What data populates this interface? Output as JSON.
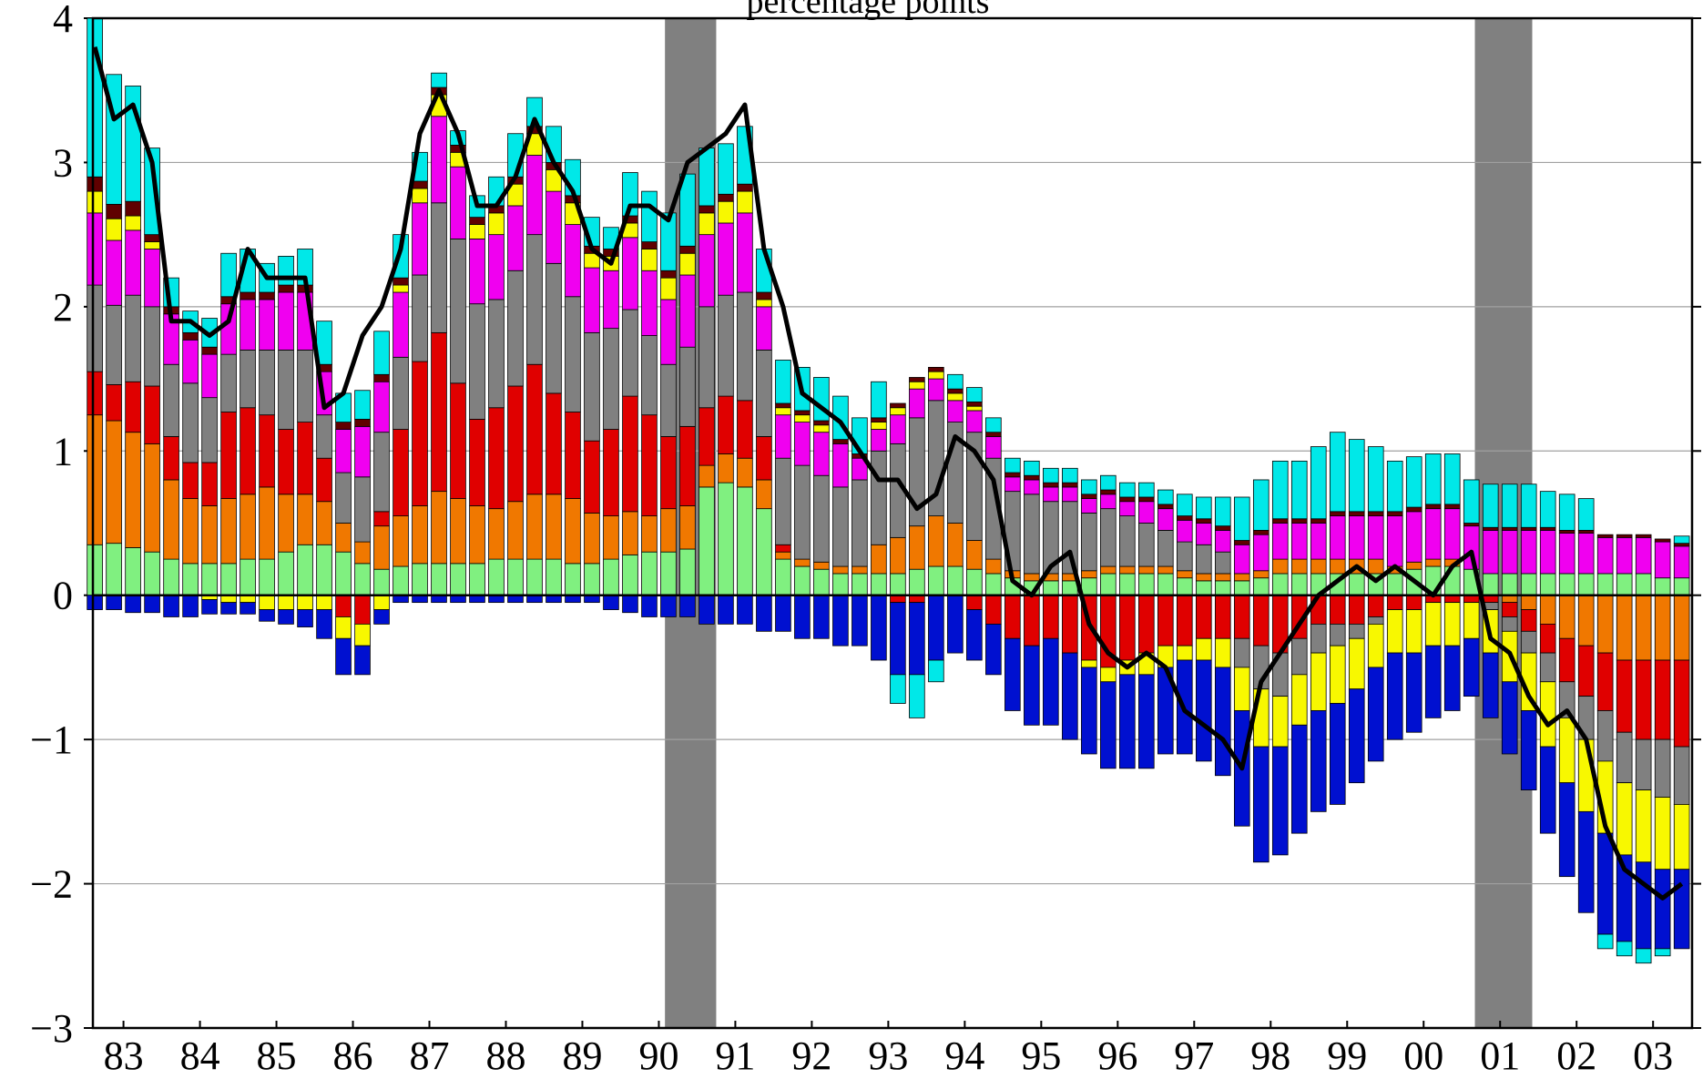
{
  "chart_data": {
    "type": "stacked_bar_line",
    "title": "percentage points",
    "xlim": [
      1983.1,
      2004.01
    ],
    "xticks": [
      {
        "value": 1983.5,
        "label": "83"
      },
      {
        "value": 1984.5,
        "label": "84"
      },
      {
        "value": 1985.5,
        "label": "85"
      },
      {
        "value": 1986.5,
        "label": "86"
      },
      {
        "value": 1987.5,
        "label": "87"
      },
      {
        "value": 1988.5,
        "label": "88"
      },
      {
        "value": 1989.5,
        "label": "89"
      },
      {
        "value": 1990.5,
        "label": "90"
      },
      {
        "value": 1991.5,
        "label": "91"
      },
      {
        "value": 1992.5,
        "label": "92"
      },
      {
        "value": 1993.5,
        "label": "93"
      },
      {
        "value": 1994.5,
        "label": "94"
      },
      {
        "value": 1995.5,
        "label": "95"
      },
      {
        "value": 1996.5,
        "label": "96"
      },
      {
        "value": 1997.5,
        "label": "97"
      },
      {
        "value": 1998.5,
        "label": "98"
      },
      {
        "value": 1999.5,
        "label": "99"
      },
      {
        "value": 2000.5,
        "label": "00"
      },
      {
        "value": 2001.5,
        "label": "01"
      },
      {
        "value": 2002.5,
        "label": "02"
      },
      {
        "value": 2003.5,
        "label": "03"
      }
    ],
    "ylim": [
      -3,
      4
    ],
    "yticks": [
      {
        "value": -3,
        "label": "−3"
      },
      {
        "value": -2,
        "label": "−2"
      },
      {
        "value": -1,
        "label": "−1"
      },
      0,
      1,
      2,
      3,
      4
    ],
    "grid": true,
    "shading": [
      [
        1990.58,
        1991.25
      ],
      [
        2001.17,
        2001.92
      ]
    ],
    "shading_color": "#808080",
    "x": [
      1983.125,
      1983.375,
      1983.625,
      1983.875,
      1984.125,
      1984.375,
      1984.625,
      1984.875,
      1985.125,
      1985.375,
      1985.625,
      1985.875,
      1986.125,
      1986.375,
      1986.625,
      1986.875,
      1987.125,
      1987.375,
      1987.625,
      1987.875,
      1988.125,
      1988.375,
      1988.625,
      1988.875,
      1989.125,
      1989.375,
      1989.625,
      1989.875,
      1990.125,
      1990.375,
      1990.625,
      1990.875,
      1991.125,
      1991.375,
      1991.625,
      1991.875,
      1992.125,
      1992.375,
      1992.625,
      1992.875,
      1993.125,
      1993.375,
      1993.625,
      1993.875,
      1994.125,
      1994.375,
      1994.625,
      1994.875,
      1995.125,
      1995.375,
      1995.625,
      1995.875,
      1996.125,
      1996.375,
      1996.625,
      1996.875,
      1997.125,
      1997.375,
      1997.625,
      1997.875,
      1998.125,
      1998.375,
      1998.625,
      1998.875,
      1999.125,
      1999.375,
      1999.625,
      1999.875,
      2000.125,
      2000.375,
      2000.625,
      2000.875,
      2001.125,
      2001.375,
      2001.625,
      2001.875,
      2002.125,
      2002.375,
      2002.625,
      2002.875,
      2003.125,
      2003.375,
      2003.625,
      2003.875
    ],
    "series": [
      {
        "color": "#80f080",
        "values": [
          0.35,
          0.36,
          0.33,
          0.3,
          0.25,
          0.22,
          0.22,
          0.22,
          0.25,
          0.25,
          0.3,
          0.35,
          0.35,
          0.3,
          0.22,
          0.18,
          0.2,
          0.22,
          0.22,
          0.22,
          0.22,
          0.25,
          0.25,
          0.25,
          0.25,
          0.22,
          0.22,
          0.25,
          0.28,
          0.3,
          0.3,
          0.32,
          0.75,
          0.78,
          0.75,
          0.6,
          0.25,
          0.2,
          0.18,
          0.15,
          0.15,
          0.15,
          0.15,
          0.18,
          0.2,
          0.2,
          0.18,
          0.15,
          0.12,
          0.1,
          0.1,
          0.1,
          0.12,
          0.15,
          0.15,
          0.15,
          0.15,
          0.12,
          0.1,
          0.1,
          0.1,
          0.12,
          0.15,
          0.15,
          0.15,
          0.15,
          0.15,
          0.15,
          0.15,
          0.18,
          0.2,
          0.2,
          0.18,
          0.15,
          0.15,
          0.15,
          0.15,
          0.15,
          0.15,
          0.15,
          0.15,
          0.15,
          0.12,
          0.12
        ]
      },
      {
        "color": "#f07800",
        "values": [
          0.9,
          0.85,
          0.8,
          0.75,
          0.55,
          0.45,
          0.4,
          0.45,
          0.45,
          0.5,
          0.4,
          0.35,
          0.3,
          0.2,
          0.15,
          0.3,
          0.35,
          0.4,
          0.5,
          0.45,
          0.4,
          0.35,
          0.4,
          0.45,
          0.45,
          0.45,
          0.35,
          0.3,
          0.3,
          0.25,
          0.3,
          0.3,
          0.15,
          0.2,
          0.2,
          0.2,
          0.05,
          0.05,
          0.05,
          0.05,
          0.05,
          0.2,
          0.25,
          0.3,
          0.35,
          0.3,
          0.2,
          0.1,
          0.05,
          0.05,
          0.05,
          0.05,
          0.05,
          0.05,
          0.05,
          0.05,
          0.05,
          0.05,
          0.05,
          0.05,
          0.05,
          0.05,
          0.1,
          0.1,
          0.1,
          0.1,
          0.1,
          0.1,
          0.05,
          0.05,
          0.05,
          0.05,
          0,
          0,
          -0.05,
          -0.1,
          -0.2,
          -0.3,
          -0.35,
          -0.4,
          -0.45,
          -0.45,
          -0.45,
          -0.45
        ]
      },
      {
        "color": "#e00000",
        "values": [
          0.3,
          0.25,
          0.35,
          0.4,
          0.3,
          0.25,
          0.3,
          0.6,
          0.6,
          0.5,
          0.45,
          0.5,
          0.3,
          -0.15,
          -0.2,
          0.1,
          0.6,
          1.0,
          1.1,
          0.8,
          0.6,
          0.7,
          0.8,
          0.9,
          0.7,
          0.6,
          0.5,
          0.6,
          0.8,
          0.7,
          0.5,
          0.55,
          0.4,
          0.4,
          0.4,
          0.3,
          0.05,
          0,
          0,
          0,
          0,
          0,
          -0.05,
          -0.05,
          0,
          0,
          -0.1,
          -0.2,
          -0.3,
          -0.35,
          -0.3,
          -0.4,
          -0.45,
          -0.5,
          -0.45,
          -0.4,
          -0.35,
          -0.35,
          -0.3,
          -0.3,
          -0.3,
          -0.35,
          -0.4,
          -0.3,
          -0.2,
          -0.2,
          -0.2,
          -0.15,
          -0.1,
          -0.1,
          -0.05,
          -0.05,
          -0.05,
          -0.05,
          -0.1,
          -0.15,
          -0.2,
          -0.3,
          -0.35,
          -0.4,
          -0.5,
          -0.55,
          -0.55,
          -0.6
        ]
      },
      {
        "color": "#808080",
        "values": [
          0.6,
          0.55,
          0.6,
          0.55,
          0.5,
          0.55,
          0.45,
          0.4,
          0.4,
          0.45,
          0.55,
          0.5,
          0.3,
          0.35,
          0.45,
          0.55,
          0.5,
          0.6,
          0.9,
          1.0,
          0.8,
          0.75,
          0.8,
          0.9,
          0.9,
          0.8,
          0.75,
          0.7,
          0.6,
          0.55,
          0.5,
          0.55,
          0.7,
          0.7,
          0.75,
          0.6,
          0.6,
          0.65,
          0.6,
          0.55,
          0.6,
          0.65,
          0.65,
          0.75,
          0.8,
          0.7,
          0.75,
          0.7,
          0.55,
          0.55,
          0.5,
          0.5,
          0.4,
          0.4,
          0.35,
          0.3,
          0.25,
          0.2,
          0.2,
          0.15,
          -0.2,
          -0.3,
          -0.3,
          -0.25,
          -0.2,
          -0.15,
          -0.1,
          -0.05,
          0,
          0,
          0,
          0,
          0,
          -0.05,
          -0.1,
          -0.15,
          -0.2,
          -0.25,
          -0.3,
          -0.35,
          -0.35,
          -0.35,
          -0.4,
          -0.4
        ]
      },
      {
        "color": "#f000f0",
        "values": [
          0.5,
          0.45,
          0.45,
          0.4,
          0.35,
          0.3,
          0.3,
          0.35,
          0.35,
          0.35,
          0.4,
          0.4,
          0.3,
          0.3,
          0.35,
          0.35,
          0.45,
          0.5,
          0.6,
          0.5,
          0.45,
          0.45,
          0.45,
          0.55,
          0.5,
          0.5,
          0.45,
          0.4,
          0.5,
          0.45,
          0.45,
          0.5,
          0.5,
          0.5,
          0.55,
          0.3,
          0.3,
          0.3,
          0.3,
          0.3,
          0.15,
          0.15,
          0.2,
          0.2,
          0.15,
          0.15,
          0.15,
          0.15,
          0.1,
          0.1,
          0.1,
          0.1,
          0.1,
          0.1,
          0.1,
          0.15,
          0.15,
          0.15,
          0.15,
          0.15,
          0.2,
          0.25,
          0.25,
          0.25,
          0.25,
          0.3,
          0.3,
          0.3,
          0.35,
          0.35,
          0.35,
          0.35,
          0.3,
          0.3,
          0.3,
          0.3,
          0.3,
          0.28,
          0.28,
          0.25,
          0.25,
          0.25,
          0.25,
          0.22
        ]
      },
      {
        "color": "#f8f800",
        "values": [
          0.15,
          0.15,
          0.1,
          0.05,
          0,
          0,
          -0.03,
          -0.05,
          -0.05,
          -0.1,
          -0.1,
          -0.1,
          -0.1,
          -0.15,
          -0.15,
          -0.1,
          0.05,
          0.1,
          0.15,
          0.1,
          0.1,
          0.15,
          0.15,
          0.15,
          0.15,
          0.15,
          0.1,
          0.1,
          0.1,
          0.15,
          0.15,
          0.15,
          0.15,
          0.15,
          0.15,
          0.05,
          0.05,
          0.05,
          0.05,
          0,
          0,
          0.05,
          0.05,
          0.05,
          0.05,
          0.05,
          0.03,
          0,
          0,
          0,
          0,
          0,
          -0.05,
          -0.1,
          -0.1,
          -0.15,
          -0.15,
          -0.1,
          -0.15,
          -0.2,
          -0.3,
          -0.4,
          -0.35,
          -0.35,
          -0.4,
          -0.4,
          -0.35,
          -0.3,
          -0.3,
          -0.3,
          -0.3,
          -0.3,
          -0.25,
          -0.3,
          -0.35,
          -0.4,
          -0.45,
          -0.45,
          -0.5,
          -0.5,
          -0.5,
          -0.5,
          -0.5,
          -0.45
        ]
      },
      {
        "color": "#600000",
        "values": [
          0.1,
          0.1,
          0.1,
          0.05,
          0.05,
          0.05,
          0.05,
          0.05,
          0.05,
          0.05,
          0.05,
          0.05,
          0.05,
          0.05,
          0.05,
          0.05,
          0.05,
          0.05,
          0.05,
          0.05,
          0.05,
          0.05,
          0.05,
          0.05,
          0.05,
          0.05,
          0.05,
          0.05,
          0.05,
          0.05,
          0.05,
          0.05,
          0.05,
          0.05,
          0.05,
          0.05,
          0.03,
          0.03,
          0.03,
          0.03,
          0.03,
          0.03,
          0.03,
          0.03,
          0.03,
          0.03,
          0.03,
          0.03,
          0.03,
          0.03,
          0.03,
          0.03,
          0.03,
          0.03,
          0.03,
          0.03,
          0.03,
          0.03,
          0.03,
          0.03,
          0.03,
          0.03,
          0.03,
          0.03,
          0.03,
          0.03,
          0.03,
          0.03,
          0.03,
          0.03,
          0.03,
          0.03,
          0.02,
          0.02,
          0.02,
          0.02,
          0.02,
          0.02,
          0.02,
          0.02,
          0.02,
          0.02,
          0.02,
          0.02
        ]
      },
      {
        "color": "#0010d0",
        "values": [
          -0.1,
          -0.1,
          -0.12,
          -0.12,
          -0.15,
          -0.15,
          -0.1,
          -0.08,
          -0.08,
          -0.08,
          -0.1,
          -0.12,
          -0.2,
          -0.25,
          -0.2,
          -0.1,
          -0.05,
          -0.05,
          -0.05,
          -0.05,
          -0.05,
          -0.05,
          -0.05,
          -0.05,
          -0.05,
          -0.05,
          -0.05,
          -0.1,
          -0.12,
          -0.15,
          -0.15,
          -0.15,
          -0.2,
          -0.2,
          -0.2,
          -0.25,
          -0.25,
          -0.3,
          -0.3,
          -0.35,
          -0.35,
          -0.45,
          -0.5,
          -0.5,
          -0.45,
          -0.4,
          -0.35,
          -0.35,
          -0.5,
          -0.55,
          -0.6,
          -0.6,
          -0.6,
          -0.6,
          -0.65,
          -0.65,
          -0.6,
          -0.65,
          -0.7,
          -0.75,
          -0.8,
          -0.8,
          -0.75,
          -0.75,
          -0.7,
          -0.7,
          -0.65,
          -0.65,
          -0.6,
          -0.55,
          -0.5,
          -0.45,
          -0.4,
          -0.45,
          -0.5,
          -0.55,
          -0.6,
          -0.65,
          -0.7,
          -0.7,
          -0.6,
          -0.6,
          -0.55,
          -0.55
        ]
      },
      {
        "color": "#00e8e8",
        "values": [
          1.1,
          0.9,
          0.8,
          0.6,
          0.2,
          0.15,
          0.2,
          0.3,
          0.3,
          0.2,
          0.2,
          0.25,
          0.3,
          0.2,
          0.2,
          0.3,
          0.3,
          0.2,
          0.1,
          0.1,
          0.15,
          0.2,
          0.3,
          0.2,
          0.25,
          0.25,
          0.2,
          0.15,
          0.3,
          0.35,
          0.4,
          0.5,
          0.4,
          0.35,
          0.4,
          0.3,
          0.3,
          0.3,
          0.3,
          0.3,
          0.25,
          0.25,
          -0.2,
          -0.3,
          -0.15,
          0.1,
          0.1,
          0.1,
          0.1,
          0.1,
          0.1,
          0.1,
          0.1,
          0.1,
          0.1,
          0.1,
          0.1,
          0.15,
          0.15,
          0.2,
          0.3,
          0.35,
          0.4,
          0.4,
          0.5,
          0.55,
          0.5,
          0.45,
          0.35,
          0.35,
          0.35,
          0.35,
          0.3,
          0.3,
          0.3,
          0.3,
          0.25,
          0.25,
          0.22,
          -0.1,
          -0.1,
          -0.1,
          -0.05,
          0.05
        ]
      }
    ],
    "line": {
      "color": "#000000",
      "values": [
        3.8,
        3.3,
        3.4,
        3.0,
        1.9,
        1.9,
        1.8,
        1.9,
        2.4,
        2.2,
        2.2,
        2.2,
        1.3,
        1.4,
        1.8,
        2.0,
        2.4,
        3.2,
        3.5,
        3.2,
        2.7,
        2.7,
        2.9,
        3.3,
        3.0,
        2.8,
        2.4,
        2.3,
        2.7,
        2.7,
        2.6,
        3.0,
        3.1,
        3.2,
        3.4,
        2.4,
        2.0,
        1.4,
        1.3,
        1.2,
        1.0,
        0.8,
        0.8,
        0.6,
        0.7,
        1.1,
        1.0,
        0.8,
        0.1,
        0.0,
        0.2,
        0.3,
        -0.2,
        -0.4,
        -0.5,
        -0.4,
        -0.5,
        -0.8,
        -0.9,
        -1.0,
        -1.2,
        -0.6,
        -0.4,
        -0.2,
        0.0,
        0.1,
        0.2,
        0.1,
        0.2,
        0.1,
        0.0,
        0.2,
        0.3,
        -0.3,
        -0.4,
        -0.7,
        -0.9,
        -0.8,
        -1.0,
        -1.6,
        -1.9,
        -2.0,
        -2.1,
        -2.0
      ]
    }
  }
}
